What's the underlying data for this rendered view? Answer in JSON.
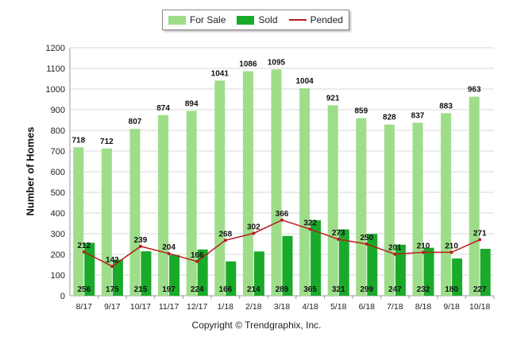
{
  "chart_data": {
    "type": "bar",
    "categories": [
      "8/17",
      "9/17",
      "10/17",
      "11/17",
      "12/17",
      "1/18",
      "2/18",
      "3/18",
      "4/18",
      "5/18",
      "6/18",
      "7/18",
      "8/18",
      "9/18",
      "10/18"
    ],
    "series": [
      {
        "name": "For Sale",
        "type": "bar",
        "color": "#9edd8a",
        "values": [
          718,
          712,
          807,
          874,
          894,
          1041,
          1086,
          1095,
          1004,
          921,
          859,
          828,
          837,
          883,
          963
        ]
      },
      {
        "name": "Sold",
        "type": "bar",
        "color": "#1aaa2a",
        "values": [
          256,
          175,
          215,
          197,
          224,
          166,
          214,
          289,
          365,
          321,
          299,
          247,
          232,
          180,
          227
        ]
      },
      {
        "name": "Pended",
        "type": "line",
        "color": "#b81c1c",
        "values": [
          212,
          142,
          239,
          204,
          166,
          268,
          302,
          366,
          322,
          273,
          250,
          201,
          210,
          210,
          271
        ]
      }
    ],
    "ylabel": "Number of Homes",
    "xlabel": "",
    "ylim": [
      0,
      1200
    ],
    "yticks": [
      0,
      100,
      200,
      300,
      400,
      500,
      600,
      700,
      800,
      900,
      1000,
      1100,
      1200
    ],
    "grid": true,
    "legend_position": "top-center"
  },
  "footer": {
    "copyright": "Copyright © Trendgraphix, Inc."
  }
}
